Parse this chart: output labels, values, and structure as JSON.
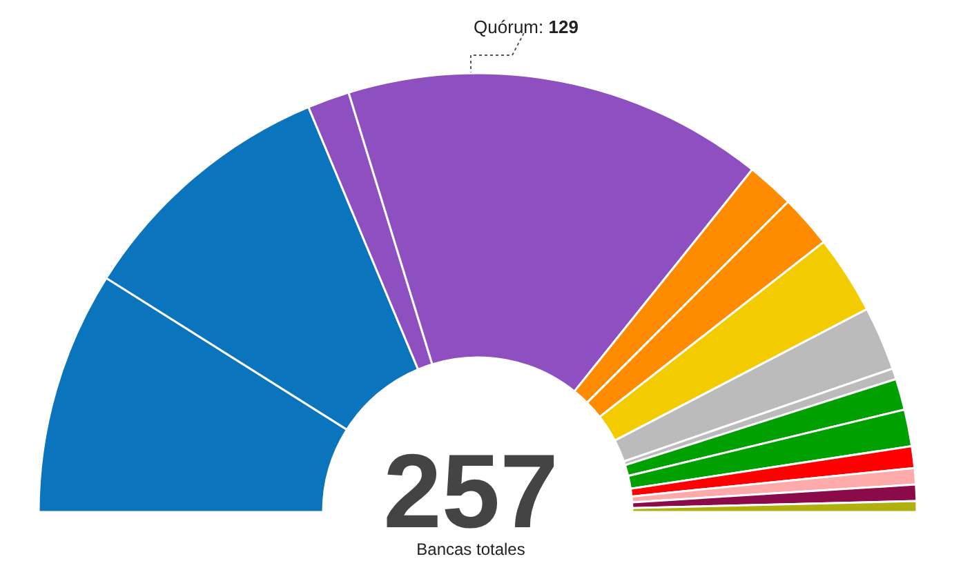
{
  "chart_data": {
    "type": "donut",
    "categories": [
      null,
      null,
      null,
      null,
      null,
      null,
      null,
      null,
      null,
      null,
      null,
      null,
      null,
      null,
      null
    ],
    "values": [
      17.9,
      19.5,
      3.1,
      31.0,
      3.5,
      3.9,
      5.8,
      4.7,
      0.8,
      2.3,
      2.7,
      1.6,
      1.2,
      1.2,
      0.8
    ],
    "colors": [
      "#0a74bd",
      "#0a74bd",
      "#8e4fc0",
      "#8e4fc0",
      "#ff8c00",
      "#ff8c00",
      "#f2cc00",
      "#bbbbbb",
      "#bbbbbb",
      "#00a000",
      "#00a000",
      "#ff0000",
      "#ffaaaa",
      "#8b0a4a",
      "#b0b010"
    ],
    "annotations": [
      "Quórum: 129",
      "257",
      "Bancas totales"
    ],
    "legend": false
  }
}
